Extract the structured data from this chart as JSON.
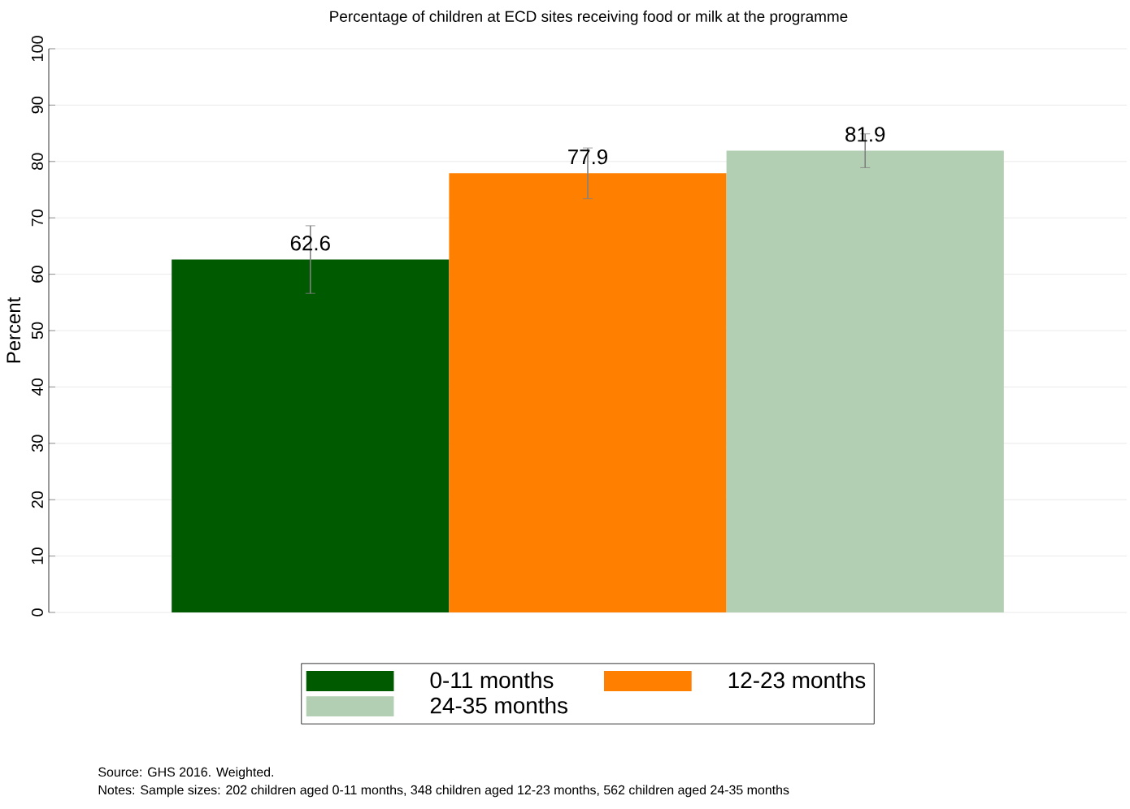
{
  "chart_data": {
    "type": "bar",
    "title": "Percentage of children at ECD sites receiving food or milk at the programme",
    "ylabel": "Percent",
    "categories": [
      null
    ],
    "series": [
      {
        "name": "0-11 months",
        "color": "#005a00",
        "values": [
          62.6
        ],
        "errors": [
          6
        ]
      },
      {
        "name": "12-23 months",
        "color": "#ff8000",
        "values": [
          77.9
        ],
        "errors": [
          4.5
        ]
      },
      {
        "name": "24-35 months",
        "color": "#b3cfb3",
        "values": [
          81.9
        ],
        "errors": [
          3
        ]
      }
    ],
    "ylim": [
      0,
      100
    ],
    "yticks": [
      0,
      10,
      20,
      30,
      40,
      50,
      60,
      70,
      80,
      90,
      100
    ],
    "grid": "y",
    "legend": "bottom",
    "data_labels": true,
    "annotations": [
      "Source: GHS 2016. Weighted.",
      "Notes: Sample sizes: 202 children aged 0-11 months, 348 children aged 12-23 months, 562 children aged 24-35 months"
    ]
  }
}
